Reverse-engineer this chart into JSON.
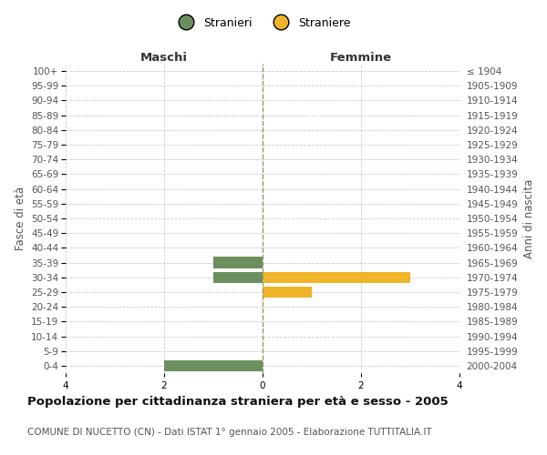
{
  "age_groups_bottom_to_top": [
    "0-4",
    "5-9",
    "10-14",
    "15-19",
    "20-24",
    "25-29",
    "30-34",
    "35-39",
    "40-44",
    "45-49",
    "50-54",
    "55-59",
    "60-64",
    "65-69",
    "70-74",
    "75-79",
    "80-84",
    "85-89",
    "90-94",
    "95-99",
    "100+"
  ],
  "birth_years_bottom_to_top": [
    "2000-2004",
    "1995-1999",
    "1990-1994",
    "1985-1989",
    "1980-1984",
    "1975-1979",
    "1970-1974",
    "1965-1969",
    "1960-1964",
    "1955-1959",
    "1950-1954",
    "1945-1949",
    "1940-1944",
    "1935-1939",
    "1930-1934",
    "1925-1929",
    "1920-1924",
    "1915-1919",
    "1910-1914",
    "1905-1909",
    "≤ 1904"
  ],
  "males_bottom_to_top": [
    2,
    0,
    0,
    0,
    0,
    0,
    1,
    1,
    0,
    0,
    0,
    0,
    0,
    0,
    0,
    0,
    0,
    0,
    0,
    0,
    0
  ],
  "females_bottom_to_top": [
    0,
    0,
    0,
    0,
    0,
    1,
    3,
    0,
    0,
    0,
    0,
    0,
    0,
    0,
    0,
    0,
    0,
    0,
    0,
    0,
    0
  ],
  "male_color": "#6b8f5e",
  "female_color": "#f0b429",
  "xlim": 4,
  "header_left": "Maschi",
  "header_right": "Femmine",
  "ylabel_left": "Fasce di età",
  "ylabel_right": "Anni di nascita",
  "title": "Popolazione per cittadinanza straniera per età e sesso - 2005",
  "subtitle": "COMUNE DI NUCETTO (CN) - Dati ISTAT 1° gennaio 2005 - Elaborazione TUTTITALIA.IT",
  "legend_male": "Stranieri",
  "legend_female": "Straniere",
  "grid_color": "#cccccc",
  "center_line_color": "#999966",
  "background_color": "#ffffff",
  "bar_height": 0.75,
  "tick_fontsize": 7.5,
  "header_fontsize": 9.5,
  "label_fontsize": 8.5,
  "title_fontsize": 9.5,
  "subtitle_fontsize": 7.5
}
